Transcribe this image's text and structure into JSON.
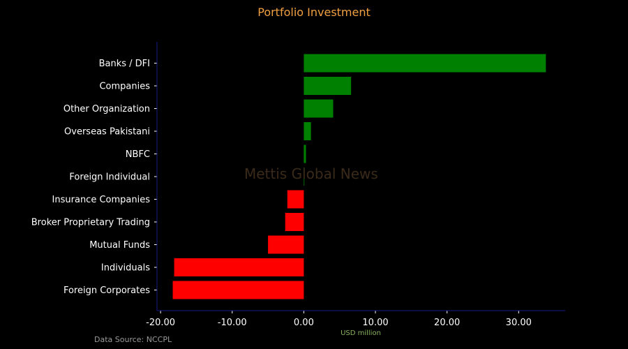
{
  "page": {
    "title": "Portfolio Investment",
    "watermark": "Mettis Global News",
    "source": "Data Source: NCCPL"
  },
  "colors": {
    "background": "#000000",
    "title": "#f0a040",
    "positive": "#008000",
    "negative": "#ff0000",
    "axis": "#1a1a8c",
    "watermark": "#3a2a1a",
    "xlabel": "#8ab060"
  },
  "chart_data": {
    "type": "bar",
    "orientation": "horizontal",
    "title": "Portfolio Investment",
    "xlabel": "USD million",
    "ylabel": "",
    "categories": [
      "Banks / DFI",
      "Companies",
      "Other Organization",
      "Overseas Pakistani",
      "NBFC",
      "Foreign Individual",
      "Insurance Companies",
      "Broker Proprietary Trading",
      "Mutual Funds",
      "Individuals",
      "Foreign Corporates"
    ],
    "values": [
      33.8,
      6.6,
      4.1,
      1.0,
      0.3,
      0.05,
      -2.3,
      -2.6,
      -5.0,
      -18.1,
      -18.3
    ],
    "xlim": [
      -20.5,
      36.5
    ],
    "xticks": [
      -20,
      -10,
      0,
      10,
      20,
      30
    ],
    "xtick_labels": [
      "-20.00",
      "-10.00",
      "0.00",
      "10.00",
      "20.00",
      "30.00"
    ],
    "grid": false,
    "legend": "none"
  }
}
